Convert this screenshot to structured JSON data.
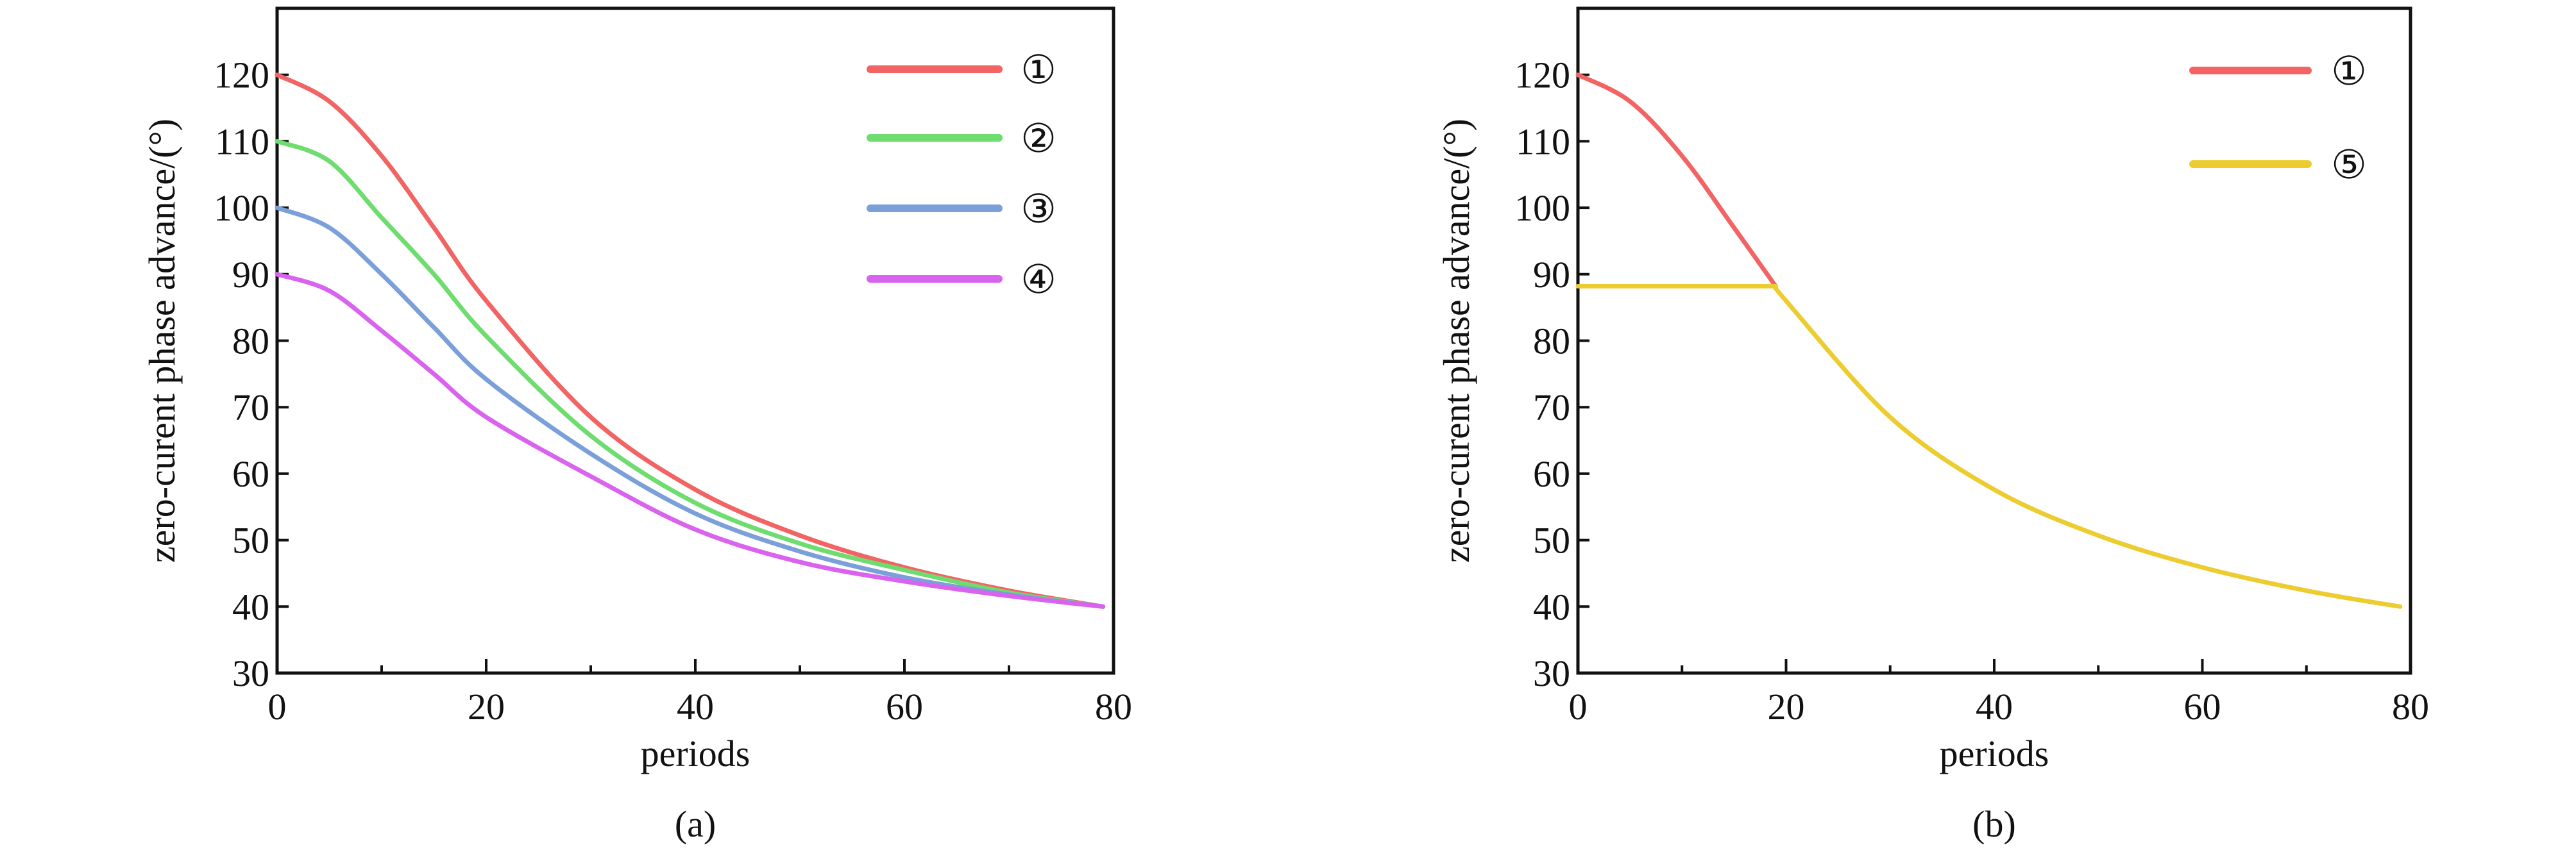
{
  "chart_data": [
    {
      "type": "line",
      "panel_label": "(a)",
      "xlabel": "periods",
      "ylabel": "zero-curent phase advance/(°)",
      "xlim": [
        0,
        80
      ],
      "ylim": [
        30,
        130
      ],
      "xticks": [
        0,
        20,
        40,
        60,
        80
      ],
      "yticks": [
        30,
        40,
        50,
        60,
        70,
        80,
        90,
        100,
        110,
        120
      ],
      "grid": false,
      "legend_position": "top-right",
      "series": [
        {
          "name": "①",
          "color": "#f26464",
          "x": [
            0,
            5,
            10,
            15,
            20,
            30,
            40,
            50,
            60,
            70,
            79
          ],
          "y": [
            120,
            116,
            107.8,
            97,
            86,
            68.5,
            57.6,
            50.7,
            45.9,
            42.4,
            40
          ]
        },
        {
          "name": "②",
          "color": "#6edc6e",
          "x": [
            0,
            5,
            10,
            15,
            20,
            30,
            40,
            50,
            60,
            70,
            79
          ],
          "y": [
            110,
            107,
            98.5,
            90,
            80.7,
            65.7,
            55.6,
            49.5,
            45.5,
            42.1,
            40
          ]
        },
        {
          "name": "③",
          "color": "#7b9fd8",
          "x": [
            0,
            5,
            10,
            15,
            20,
            30,
            40,
            50,
            60,
            70,
            79
          ],
          "y": [
            100,
            97,
            90,
            82,
            74.2,
            63,
            54,
            48.3,
            44.4,
            41.8,
            40
          ]
        },
        {
          "name": "④",
          "color": "#d963ef",
          "x": [
            0,
            5,
            10,
            15,
            20,
            30,
            40,
            50,
            60,
            70,
            79
          ],
          "y": [
            90,
            87.5,
            81.5,
            75,
            68.5,
            59.6,
            51.6,
            46.7,
            43.8,
            41.6,
            40
          ]
        }
      ]
    },
    {
      "type": "line",
      "panel_label": "(b)",
      "xlabel": "periods",
      "ylabel": "zero-curent phase advance/(°)",
      "xlim": [
        0,
        80
      ],
      "ylim": [
        30,
        130
      ],
      "xticks": [
        0,
        20,
        40,
        60,
        80
      ],
      "yticks": [
        30,
        40,
        50,
        60,
        70,
        80,
        90,
        100,
        110,
        120
      ],
      "grid": false,
      "legend_position": "top-right",
      "series": [
        {
          "name": "①",
          "color": "#f26464",
          "x": [
            0,
            5,
            10,
            15,
            19
          ],
          "y": [
            120,
            116,
            107.8,
            97,
            88.2
          ]
        },
        {
          "name": "⑤",
          "color": "#eccc2e",
          "x": [
            0,
            19,
            20,
            30,
            40,
            50,
            60,
            70,
            79
          ],
          "y": [
            88.2,
            88.2,
            86,
            68.5,
            57.6,
            50.7,
            45.9,
            42.4,
            40
          ]
        }
      ]
    }
  ]
}
